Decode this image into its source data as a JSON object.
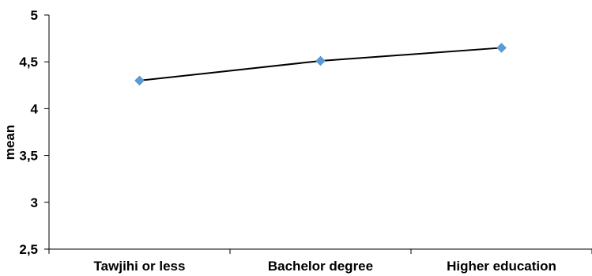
{
  "chart_data": {
    "type": "line",
    "title": "",
    "xlabel": "",
    "ylabel": "mean",
    "categories": [
      "Tawjihi or less",
      "Bachelor degree",
      "Higher education"
    ],
    "series": [
      {
        "values": [
          4.3,
          4.51,
          4.65
        ]
      }
    ],
    "ylim": [
      2.5,
      5
    ],
    "yticks": [
      2.5,
      3,
      3.5,
      4,
      4.5,
      5
    ],
    "ytick_labels": [
      "2,5",
      "3",
      "3,5",
      "4",
      "4,5",
      "5"
    ],
    "grid": false,
    "legend": "none",
    "colors": {
      "line": "#000000",
      "marker": "#5b9bd5"
    }
  }
}
